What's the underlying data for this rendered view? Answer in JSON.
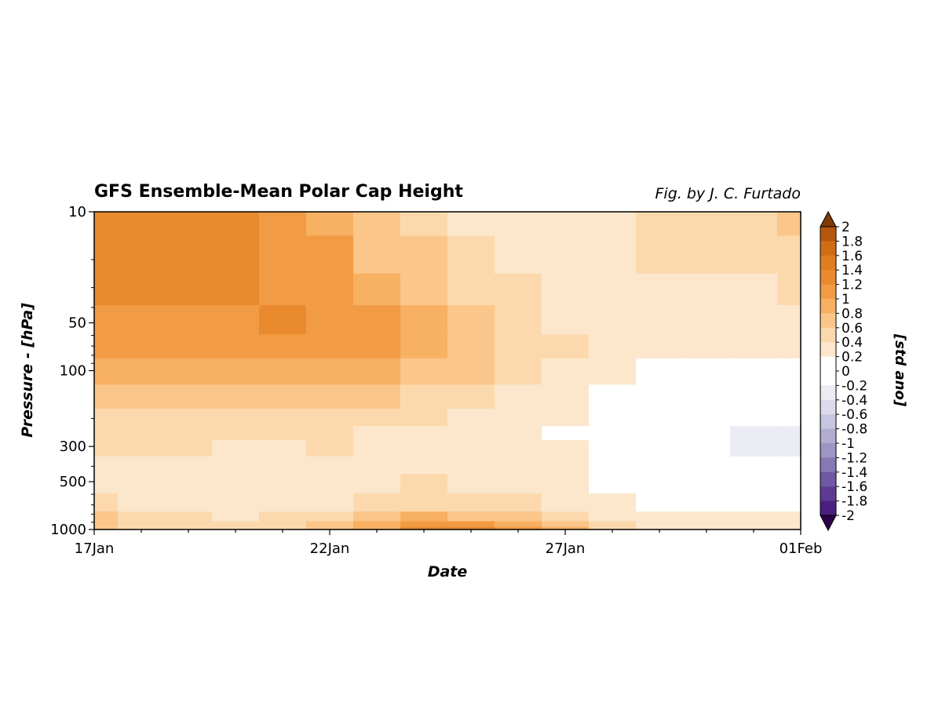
{
  "chart_data": {
    "type": "heatmap",
    "title": "GFS Ensemble-Mean Polar Cap Height",
    "credit": "Fig. by J. C. Furtado",
    "xlabel": "Date",
    "ylabel": "Pressure - [hPa]",
    "x": [
      "17Jan",
      "18Jan",
      "19Jan",
      "20Jan",
      "21Jan",
      "22Jan",
      "23Jan",
      "24Jan",
      "25Jan",
      "26Jan",
      "27Jan",
      "28Jan",
      "29Jan",
      "30Jan",
      "31Jan",
      "01Feb"
    ],
    "y": [
      10,
      20,
      30,
      50,
      70,
      100,
      150,
      200,
      250,
      300,
      400,
      500,
      700,
      850,
      925,
      1000
    ],
    "y_scale": "log",
    "ylim": [
      1000,
      10
    ],
    "x_tick_labels": [
      "17Jan",
      "22Jan",
      "27Jan",
      "01Feb"
    ],
    "y_tick_labels": [
      10,
      50,
      100,
      300,
      500,
      1000
    ],
    "colorbar": {
      "label": "[std ano]",
      "ticks": [
        2,
        1.8,
        1.6,
        1.4,
        1.2,
        1,
        0.8,
        0.6,
        0.4,
        0.2,
        0,
        -0.2,
        -0.4,
        -0.6,
        -0.8,
        -1,
        -1.2,
        -1.4,
        -1.6,
        -1.8,
        -2
      ],
      "range": [
        -2,
        2
      ],
      "extend": "both",
      "colormap": "PuOr_r",
      "colors": {
        "max": "#7f3b08",
        "mid": "#ffffff",
        "min": "#2d004b"
      }
    },
    "values": [
      [
        1.2,
        1.3,
        1.3,
        1.3,
        1.0,
        0.9,
        0.6,
        0.5,
        0.3,
        0.2,
        0.2,
        0.3,
        0.4,
        0.5,
        0.5,
        0.6
      ],
      [
        1.3,
        1.3,
        1.3,
        1.3,
        1.1,
        1.0,
        0.7,
        0.6,
        0.4,
        0.3,
        0.2,
        0.3,
        0.4,
        0.4,
        0.5,
        0.5
      ],
      [
        1.2,
        1.3,
        1.3,
        1.2,
        1.1,
        1.0,
        0.8,
        0.6,
        0.5,
        0.4,
        0.3,
        0.2,
        0.3,
        0.3,
        0.3,
        0.4
      ],
      [
        1.1,
        1.1,
        1.1,
        1.1,
        1.2,
        1.1,
        1.0,
        0.8,
        0.6,
        0.5,
        0.3,
        0.3,
        0.2,
        0.2,
        0.3,
        0.3
      ],
      [
        1.0,
        1.0,
        1.0,
        1.0,
        1.0,
        1.0,
        1.0,
        0.8,
        0.7,
        0.5,
        0.4,
        0.3,
        0.2,
        0.2,
        0.2,
        0.2
      ],
      [
        0.8,
        0.8,
        0.8,
        0.8,
        0.8,
        0.8,
        0.8,
        0.7,
        0.6,
        0.4,
        0.3,
        0.2,
        0.1,
        0.1,
        0.1,
        0.1
      ],
      [
        0.7,
        0.7,
        0.7,
        0.6,
        0.6,
        0.6,
        0.6,
        0.5,
        0.4,
        0.3,
        0.2,
        0.1,
        0.0,
        0.0,
        0.0,
        0.0
      ],
      [
        0.5,
        0.5,
        0.5,
        0.5,
        0.5,
        0.5,
        0.4,
        0.4,
        0.3,
        0.3,
        0.2,
        0.0,
        0.0,
        -0.1,
        -0.1,
        -0.1
      ],
      [
        0.4,
        0.4,
        0.4,
        0.4,
        0.4,
        0.4,
        0.3,
        0.3,
        0.3,
        0.3,
        0.1,
        0.0,
        0.0,
        -0.1,
        -0.2,
        -0.2
      ],
      [
        0.4,
        0.4,
        0.4,
        0.2,
        0.3,
        0.4,
        0.3,
        0.3,
        0.3,
        0.2,
        0.2,
        0.0,
        0.0,
        -0.1,
        -0.2,
        -0.2
      ],
      [
        0.3,
        0.3,
        0.2,
        0.3,
        0.2,
        0.3,
        0.3,
        0.3,
        0.3,
        0.2,
        0.2,
        0.1,
        0.0,
        -0.1,
        -0.1,
        -0.1
      ],
      [
        0.3,
        0.2,
        0.2,
        0.3,
        0.2,
        0.3,
        0.3,
        0.4,
        0.3,
        0.3,
        0.3,
        0.1,
        0.0,
        0.0,
        0.0,
        0.0
      ],
      [
        0.4,
        0.3,
        0.3,
        0.2,
        0.3,
        0.3,
        0.4,
        0.5,
        0.4,
        0.4,
        0.3,
        0.2,
        0.1,
        0.1,
        0.1,
        0.1
      ],
      [
        0.6,
        0.5,
        0.4,
        0.3,
        0.4,
        0.5,
        0.6,
        0.8,
        0.7,
        0.6,
        0.5,
        0.3,
        0.2,
        0.2,
        0.2,
        0.2
      ],
      [
        0.6,
        0.5,
        0.4,
        0.4,
        0.5,
        0.6,
        0.8,
        1.1,
        1.0,
        0.9,
        0.7,
        0.4,
        0.3,
        0.3,
        0.3,
        0.3
      ],
      [
        0.6,
        0.5,
        0.5,
        0.4,
        0.5,
        0.6,
        0.9,
        1.2,
        1.2,
        1.0,
        0.8,
        0.5,
        0.3,
        0.3,
        0.3,
        0.3
      ]
    ]
  }
}
